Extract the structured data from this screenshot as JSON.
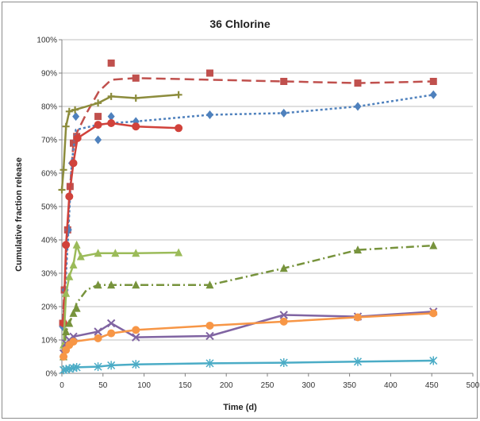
{
  "chart_data": {
    "type": "line",
    "title": "36 Chlorine",
    "xlabel": "Time (d)",
    "ylabel": "Cumulative fraction release",
    "xlim": [
      0,
      500
    ],
    "ylim": [
      0,
      1
    ],
    "xticks": [
      "0",
      "50",
      "100",
      "150",
      "200",
      "250",
      "300",
      "350",
      "400",
      "450",
      "500"
    ],
    "yticks": [
      "0%",
      "10%",
      "20%",
      "30%",
      "40%",
      "50%",
      "60%",
      "70%",
      "80%",
      "90%",
      "100%"
    ],
    "grid": "horizontal",
    "legend": "none",
    "series": [
      {
        "color": "#c0504d",
        "dash": "long-dash",
        "marker": "square",
        "points": [
          [
            1,
            0.15
          ],
          [
            3,
            0.25
          ],
          [
            7,
            0.43
          ],
          [
            10,
            0.56
          ],
          [
            14,
            0.69
          ],
          [
            18,
            0.71
          ],
          [
            44,
            0.77
          ],
          [
            60,
            0.93
          ],
          [
            90,
            0.885
          ],
          [
            180,
            0.9
          ],
          [
            270,
            0.875
          ],
          [
            360,
            0.87
          ],
          [
            452,
            0.875
          ]
        ],
        "trend": [
          [
            1,
            0.15
          ],
          [
            3,
            0.25
          ],
          [
            7,
            0.43
          ],
          [
            10,
            0.56
          ],
          [
            14,
            0.69
          ],
          [
            18,
            0.72
          ],
          [
            30,
            0.78
          ],
          [
            45,
            0.845
          ],
          [
            60,
            0.88
          ],
          [
            90,
            0.885
          ],
          [
            180,
            0.88
          ],
          [
            270,
            0.875
          ],
          [
            360,
            0.87
          ],
          [
            452,
            0.875
          ]
        ]
      },
      {
        "color": "#4f81bd",
        "dash": "dot",
        "marker": "diamond",
        "points": [
          [
            1,
            0.14
          ],
          [
            4,
            0.25
          ],
          [
            8,
            0.43
          ],
          [
            12,
            0.63
          ],
          [
            17,
            0.77
          ],
          [
            44,
            0.7
          ],
          [
            60,
            0.77
          ],
          [
            90,
            0.755
          ],
          [
            180,
            0.775
          ],
          [
            270,
            0.78
          ],
          [
            360,
            0.8
          ],
          [
            452,
            0.835
          ]
        ],
        "trend": [
          [
            1,
            0.14
          ],
          [
            4,
            0.25
          ],
          [
            8,
            0.43
          ],
          [
            12,
            0.63
          ],
          [
            17,
            0.73
          ],
          [
            44,
            0.745
          ],
          [
            60,
            0.75
          ],
          [
            90,
            0.755
          ],
          [
            180,
            0.775
          ],
          [
            270,
            0.78
          ],
          [
            360,
            0.8
          ],
          [
            452,
            0.835
          ]
        ]
      },
      {
        "color": "#8c8c3c",
        "dash": "solid",
        "marker": "plus",
        "points": [
          [
            0,
            0.55
          ],
          [
            2,
            0.61
          ],
          [
            5,
            0.74
          ],
          [
            9,
            0.785
          ],
          [
            16,
            0.79
          ],
          [
            44,
            0.81
          ],
          [
            60,
            0.83
          ],
          [
            90,
            0.825
          ],
          [
            142,
            0.835
          ]
        ]
      },
      {
        "color": "#d1423b",
        "dash": "solid",
        "marker": "circle",
        "points": [
          [
            2,
            0.15
          ],
          [
            5,
            0.385
          ],
          [
            9,
            0.53
          ],
          [
            14,
            0.63
          ],
          [
            19,
            0.705
          ],
          [
            44,
            0.745
          ],
          [
            60,
            0.75
          ],
          [
            90,
            0.74
          ],
          [
            142,
            0.735
          ]
        ]
      },
      {
        "color": "#9bbb59",
        "dash": "solid",
        "marker": "triangle",
        "points": [
          [
            2,
            0.085
          ],
          [
            5,
            0.24
          ],
          [
            9,
            0.29
          ],
          [
            14,
            0.325
          ],
          [
            18,
            0.385
          ],
          [
            23,
            0.35
          ],
          [
            44,
            0.36
          ],
          [
            65,
            0.36
          ],
          [
            90,
            0.36
          ],
          [
            142,
            0.362
          ]
        ]
      },
      {
        "color": "#77933c",
        "dash": "dash-dot",
        "marker": "triangle",
        "points": [
          [
            2,
            0.05
          ],
          [
            5,
            0.125
          ],
          [
            9,
            0.15
          ],
          [
            14,
            0.18
          ],
          [
            18,
            0.195
          ],
          [
            44,
            0.265
          ],
          [
            60,
            0.265
          ],
          [
            90,
            0.265
          ],
          [
            180,
            0.265
          ],
          [
            270,
            0.315
          ],
          [
            360,
            0.37
          ],
          [
            452,
            0.383
          ]
        ],
        "trend": [
          [
            2,
            0.05
          ],
          [
            5,
            0.125
          ],
          [
            9,
            0.15
          ],
          [
            14,
            0.18
          ],
          [
            18,
            0.21
          ],
          [
            30,
            0.25
          ],
          [
            44,
            0.265
          ],
          [
            60,
            0.265
          ],
          [
            90,
            0.265
          ],
          [
            180,
            0.265
          ],
          [
            270,
            0.315
          ],
          [
            360,
            0.37
          ],
          [
            452,
            0.383
          ]
        ]
      },
      {
        "color": "#8064a2",
        "dash": "solid",
        "marker": "x",
        "points": [
          [
            2,
            0.06
          ],
          [
            5,
            0.09
          ],
          [
            9,
            0.1
          ],
          [
            14,
            0.11
          ],
          [
            44,
            0.125
          ],
          [
            60,
            0.15
          ],
          [
            90,
            0.108
          ],
          [
            180,
            0.112
          ],
          [
            270,
            0.175
          ],
          [
            360,
            0.17
          ],
          [
            452,
            0.185
          ]
        ]
      },
      {
        "color": "#f79646",
        "dash": "solid",
        "marker": "circle",
        "points": [
          [
            2,
            0.05
          ],
          [
            5,
            0.07
          ],
          [
            9,
            0.085
          ],
          [
            14,
            0.095
          ],
          [
            44,
            0.105
          ],
          [
            60,
            0.12
          ],
          [
            90,
            0.13
          ],
          [
            180,
            0.143
          ],
          [
            270,
            0.155
          ],
          [
            360,
            0.168
          ],
          [
            452,
            0.18
          ]
        ]
      },
      {
        "color": "#4bacc6",
        "dash": "solid",
        "marker": "asterisk",
        "points": [
          [
            2,
            0.01
          ],
          [
            5,
            0.012
          ],
          [
            9,
            0.014
          ],
          [
            14,
            0.016
          ],
          [
            18,
            0.018
          ],
          [
            44,
            0.02
          ],
          [
            60,
            0.024
          ],
          [
            90,
            0.027
          ],
          [
            180,
            0.03
          ],
          [
            270,
            0.032
          ],
          [
            360,
            0.035
          ],
          [
            452,
            0.038
          ]
        ]
      }
    ]
  }
}
